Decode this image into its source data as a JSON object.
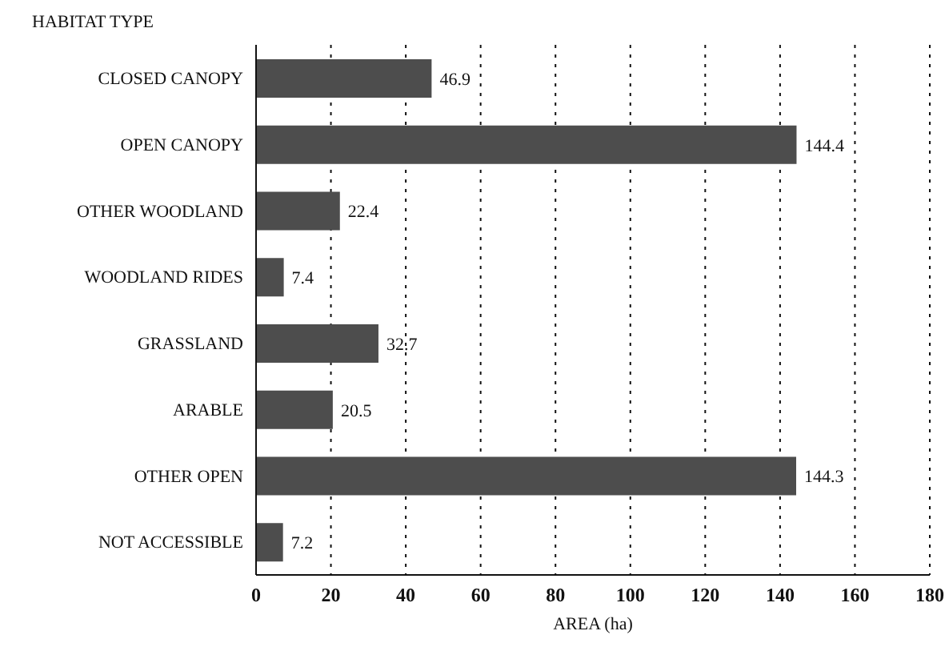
{
  "chart_data": {
    "type": "bar",
    "orientation": "horizontal",
    "ylabel": "HABITAT TYPE",
    "xlabel": "AREA (ha)",
    "categories": [
      "CLOSED CANOPY",
      "OPEN CANOPY",
      "OTHER WOODLAND",
      "WOODLAND RIDES",
      "GRASSLAND",
      "ARABLE",
      "OTHER OPEN",
      "NOT ACCESSIBLE"
    ],
    "values": [
      46.9,
      144.4,
      22.4,
      7.4,
      32.7,
      20.5,
      144.3,
      7.2
    ],
    "color": "#4d4d4d",
    "data_labels": true,
    "grid": "x",
    "xlim": [
      0,
      180
    ],
    "xticks": [
      0,
      20,
      40,
      60,
      80,
      100,
      120,
      140,
      160,
      180
    ]
  }
}
